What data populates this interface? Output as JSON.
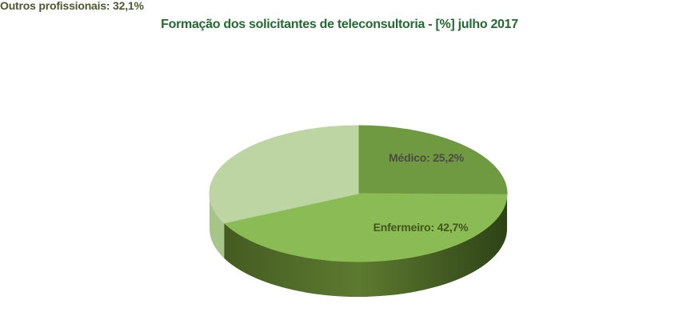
{
  "colors": {
    "title_text": "#216b2f",
    "background": "#ffffff"
  },
  "chart_data": {
    "type": "pie",
    "title": "Formação dos solicitantes de teleconsultoria - [%] julho 2017",
    "unit": "%",
    "style": "3d-pie",
    "start_angle_deg": 0,
    "direction": "clockwise",
    "legend": "none",
    "labels_on_chart": true,
    "slices": [
      {
        "label": "Médico",
        "value": 25.2,
        "display": "Médico: 25,2%",
        "color": "#6f9a41",
        "side_colors": [
          "#42591f"
        ],
        "label_color": "#4c4c45"
      },
      {
        "label": "Enfermeiro",
        "value": 42.7,
        "display": "Enfermeiro: 42,7%",
        "color": "#8bbb55",
        "side_colors": [
          "#41581f",
          "#5d7a30",
          "#2e4316"
        ],
        "label_color": "#42561d"
      },
      {
        "label": "Outros profissionais",
        "value": 32.1,
        "display": "Outros profissionais: 32,1%",
        "color": "#bdd5a3",
        "side_colors": [
          "#a8c589"
        ],
        "label_color": "#4c5a30"
      }
    ]
  }
}
